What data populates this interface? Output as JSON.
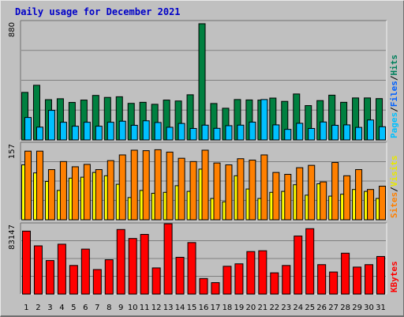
{
  "chart_data": {
    "title": "Daily usage for December 2021",
    "type": "bar",
    "categories": [
      "1",
      "2",
      "3",
      "4",
      "5",
      "6",
      "7",
      "8",
      "9",
      "10",
      "11",
      "12",
      "13",
      "14",
      "15",
      "16",
      "17",
      "18",
      "19",
      "20",
      "21",
      "22",
      "23",
      "24",
      "25",
      "26",
      "27",
      "28",
      "29",
      "30",
      "31"
    ],
    "weekend_days": [
      "4",
      "5",
      "11",
      "12",
      "18",
      "19",
      "25",
      "26"
    ],
    "colors": {
      "hits": "#008040",
      "files": "#00c0ff",
      "visits": "#ffff00",
      "sites": "#ff8000",
      "kbytes": "#ff0000",
      "weekday_label": "#000000",
      "weekend_label": "#00805c",
      "grid": "#808080",
      "background": "#c0c0c0",
      "title": "#0000c8"
    },
    "panels": [
      {
        "id": "top",
        "ymax_label": "880",
        "ymax": 880,
        "ylabel_parts": [
          {
            "text": "Pages",
            "color": "#00c0ff"
          },
          {
            "text": "/",
            "color": "#000000"
          },
          {
            "text": "Files",
            "color": "#0060ff"
          },
          {
            "text": "/",
            "color": "#000000"
          },
          {
            "text": "Hits",
            "color": "#00805c"
          }
        ],
        "series": [
          {
            "name": "Hits",
            "color": "#008040",
            "values": [
              360,
              414,
              305,
              312,
              284,
              302,
              337,
              322,
              327,
              277,
              285,
              270,
              302,
              295,
              342,
              880,
              276,
              240,
              306,
              303,
              302,
              317,
              292,
              348,
              260,
              298,
              339,
              285,
              318,
              318,
              313
            ]
          },
          {
            "name": "Files",
            "color": "#00c0ff",
            "values": [
              170,
              97,
              224,
              134,
              104,
              134,
              104,
              134,
              142,
              111,
              145,
              132,
              96,
              125,
              87,
              112,
              88,
              108,
              112,
              135,
              306,
              114,
              80,
              126,
              87,
              136,
              111,
              114,
              95,
              151,
              100
            ]
          }
        ]
      },
      {
        "id": "middle",
        "ymax_label": "157",
        "ymax": 157,
        "ylabel_parts": [
          {
            "text": "Sites",
            "color": "#ff8000"
          },
          {
            "text": "/",
            "color": "#000000"
          },
          {
            "text": "Visits",
            "color": "#e8e800"
          }
        ],
        "series": [
          {
            "name": "Visits",
            "color": "#ffff00",
            "values": [
              116,
              99,
              81,
              62,
              88,
              90,
              100,
              93,
              75,
              47,
              62,
              56,
              58,
              72,
              60,
              107,
              45,
              38,
              93,
              65,
              45,
              58,
              60,
              74,
              52,
              76,
              50,
              54,
              64,
              60,
              45
            ]
          },
          {
            "name": "Sites",
            "color": "#ff8000",
            "values": [
              145,
              145,
              106,
              123,
              112,
              117,
              106,
              125,
              137,
              147,
              146,
              148,
              143,
              130,
              123,
              147,
              120,
              116,
              129,
              126,
              137,
              100,
              96,
              110,
              115,
              80,
              121,
              93,
              106,
              64,
              71
            ]
          }
        ]
      },
      {
        "id": "bottom",
        "ymax_label": "83147",
        "ymax": 83147,
        "ylabel_parts": [
          {
            "text": "KBytes",
            "color": "#ff0000"
          }
        ],
        "series": [
          {
            "name": "KBytes",
            "color": "#ff0000",
            "values": [
              77000,
              59000,
              41000,
              61000,
              35000,
              55000,
              30000,
              42000,
              79000,
              68000,
              73000,
              32000,
              86000,
              45000,
              63000,
              19000,
              14000,
              34000,
              37000,
              52000,
              53000,
              26000,
              35000,
              71000,
              80000,
              36000,
              27000,
              50000,
              33000,
              36000,
              46000
            ]
          }
        ]
      }
    ]
  }
}
